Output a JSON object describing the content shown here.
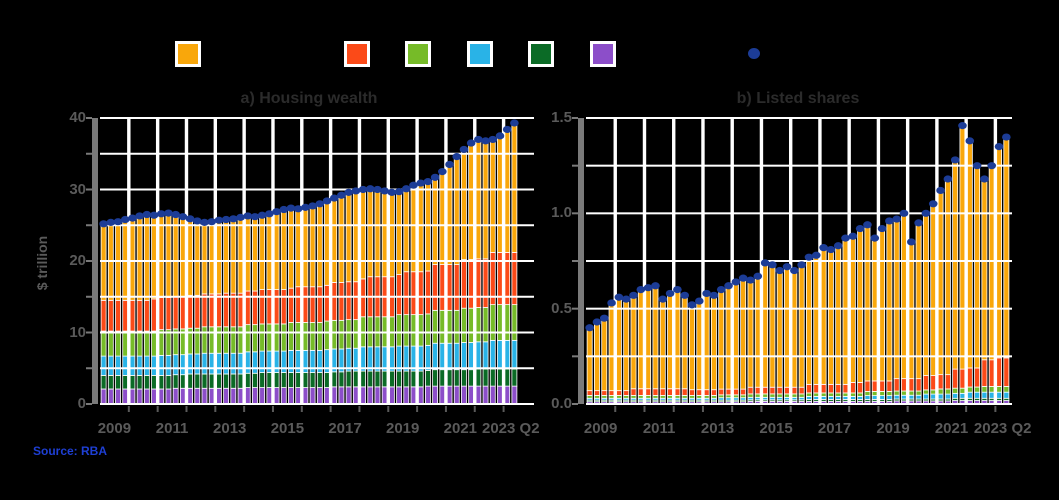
{
  "page": {
    "background": "#000000"
  },
  "source_note": "Source: RBA",
  "palette": {
    "orange": "#F9A70B",
    "red": "#FB4A18",
    "green": "#76BB28",
    "cyan": "#29B3E7",
    "dark_green": "#0B6B26",
    "purple": "#8C4EC9",
    "total_dot": "#1C3C96",
    "gridline": "#FFFFFF",
    "axis_gray": "#7a7a7a",
    "tick_text": "#5a5a5a",
    "title_text": "#2b2b2b",
    "source_blue": "#1E3FD4"
  },
  "legend": {
    "swatches": [
      {
        "name": "series-orange",
        "color": "#F9A70B"
      },
      {
        "name": "series-red",
        "color": "#FB4A18"
      },
      {
        "name": "series-green",
        "color": "#76BB28"
      },
      {
        "name": "series-cyan",
        "color": "#29B3E7"
      },
      {
        "name": "series-dark-green",
        "color": "#0B6B26"
      },
      {
        "name": "series-purple",
        "color": "#8C4EC9"
      }
    ],
    "marker": {
      "name": "total-marker",
      "color": "#1C3C96"
    }
  },
  "chart_data": [
    {
      "id": "a",
      "type": "bar",
      "stacked": true,
      "title": "a) Housing wealth",
      "ylabel": "$ trillion",
      "ylim": [
        0,
        40
      ],
      "grid_step": 5,
      "x_start": "2009 Q1",
      "x_end": "2023 Q2",
      "yticks": [
        {
          "label": "40",
          "value": 40
        },
        {
          "label": "30",
          "value": 30
        },
        {
          "label": "20",
          "value": 20
        },
        {
          "label": "10",
          "value": 10
        },
        {
          "label": "0",
          "value": 0
        }
      ],
      "xticks": [
        {
          "label": "2009",
          "pos": 2
        },
        {
          "label": "2011",
          "pos": 10
        },
        {
          "label": "2013",
          "pos": 18
        },
        {
          "label": "2015",
          "pos": 26
        },
        {
          "label": "2017",
          "pos": 34
        },
        {
          "label": "2019",
          "pos": 42
        },
        {
          "label": "2021",
          "pos": 50
        },
        {
          "label": "2023 Q2",
          "pos": 57
        }
      ],
      "year_gridline_indices": [
        4,
        8,
        12,
        16,
        20,
        24,
        28,
        32,
        36,
        40,
        44,
        48,
        52,
        56
      ],
      "series": [
        {
          "name": "series-purple",
          "color": "#8C4EC9",
          "values": [
            2.1,
            2.1,
            2.1,
            2.1,
            2.1,
            2.1,
            2.1,
            2.1,
            2.1,
            2.1,
            2.2,
            2.2,
            2.2,
            2.2,
            2.2,
            2.2,
            2.2,
            2.2,
            2.2,
            2.2,
            2.3,
            2.3,
            2.3,
            2.3,
            2.3,
            2.3,
            2.3,
            2.3,
            2.3,
            2.3,
            2.3,
            2.3,
            2.4,
            2.4,
            2.4,
            2.4,
            2.4,
            2.4,
            2.4,
            2.4,
            2.4,
            2.4,
            2.4,
            2.4,
            2.4,
            2.5,
            2.5,
            2.5,
            2.5,
            2.5,
            2.5,
            2.5,
            2.5,
            2.5,
            2.5,
            2.5,
            2.5,
            2.5
          ]
        },
        {
          "name": "series-dark-green",
          "color": "#0B6B26",
          "values": [
            1.9,
            1.9,
            1.9,
            1.9,
            1.9,
            1.9,
            1.9,
            1.9,
            1.9,
            1.9,
            1.9,
            1.9,
            2.0,
            2.0,
            2.0,
            2.0,
            2.0,
            2.0,
            2.0,
            2.0,
            2.0,
            2.0,
            2.1,
            2.1,
            2.1,
            2.1,
            2.1,
            2.1,
            2.1,
            2.1,
            2.1,
            2.1,
            2.1,
            2.1,
            2.2,
            2.2,
            2.2,
            2.2,
            2.2,
            2.2,
            2.2,
            2.2,
            2.2,
            2.2,
            2.2,
            2.2,
            2.3,
            2.3,
            2.3,
            2.3,
            2.3,
            2.3,
            2.4,
            2.4,
            2.4,
            2.4,
            2.4,
            2.4
          ]
        },
        {
          "name": "series-cyan",
          "color": "#29B3E7",
          "values": [
            2.7,
            2.7,
            2.7,
            2.7,
            2.7,
            2.7,
            2.7,
            2.7,
            2.8,
            2.8,
            2.8,
            2.8,
            2.8,
            2.8,
            2.9,
            2.9,
            2.9,
            2.9,
            2.9,
            2.9,
            3.0,
            3.0,
            3.0,
            3.0,
            3.0,
            3.0,
            3.1,
            3.1,
            3.1,
            3.1,
            3.1,
            3.2,
            3.2,
            3.2,
            3.2,
            3.2,
            3.4,
            3.4,
            3.4,
            3.4,
            3.4,
            3.5,
            3.5,
            3.5,
            3.5,
            3.5,
            3.7,
            3.7,
            3.7,
            3.7,
            3.8,
            3.8,
            3.8,
            3.8,
            4.0,
            4.0,
            4.0,
            4.0
          ]
        },
        {
          "name": "series-green",
          "color": "#76BB28",
          "values": [
            3.5,
            3.5,
            3.5,
            3.5,
            3.5,
            3.5,
            3.5,
            3.5,
            3.6,
            3.6,
            3.6,
            3.6,
            3.6,
            3.6,
            3.7,
            3.7,
            3.7,
            3.7,
            3.7,
            3.7,
            3.8,
            3.8,
            3.8,
            3.8,
            3.8,
            3.8,
            3.9,
            3.9,
            3.9,
            3.9,
            3.9,
            4.0,
            4.0,
            4.0,
            4.0,
            4.0,
            4.2,
            4.2,
            4.2,
            4.2,
            4.2,
            4.4,
            4.4,
            4.4,
            4.4,
            4.4,
            4.6,
            4.6,
            4.6,
            4.6,
            4.8,
            4.8,
            4.8,
            4.8,
            5.0,
            5.0,
            5.0,
            5.0
          ]
        },
        {
          "name": "series-red",
          "color": "#FB4A18",
          "values": [
            4.3,
            4.3,
            4.3,
            4.3,
            4.3,
            4.3,
            4.3,
            4.5,
            4.5,
            4.5,
            4.5,
            4.5,
            4.6,
            4.6,
            4.6,
            4.6,
            4.6,
            4.7,
            4.7,
            4.7,
            4.7,
            4.7,
            4.8,
            4.8,
            4.8,
            4.8,
            4.8,
            5.0,
            5.0,
            5.0,
            5.0,
            5.0,
            5.3,
            5.3,
            5.3,
            5.3,
            5.3,
            5.6,
            5.6,
            5.6,
            5.6,
            5.6,
            6.0,
            6.0,
            6.0,
            6.0,
            6.4,
            6.4,
            6.4,
            6.4,
            6.8,
            6.8,
            6.8,
            6.8,
            7.3,
            7.3,
            7.3,
            7.3
          ]
        },
        {
          "name": "series-orange",
          "color": "#F9A70B",
          "remainder_to_total": true,
          "values": []
        }
      ],
      "total_markers": {
        "name": "total",
        "color": "#1C3C96",
        "values": [
          25.2,
          25.4,
          25.5,
          25.8,
          26.0,
          26.3,
          26.5,
          26.4,
          26.6,
          26.7,
          26.5,
          26.2,
          25.9,
          25.6,
          25.4,
          25.5,
          25.7,
          25.8,
          25.9,
          26.1,
          26.3,
          26.2,
          26.4,
          26.6,
          26.9,
          27.2,
          27.4,
          27.3,
          27.5,
          27.7,
          28.0,
          28.4,
          28.8,
          29.2,
          29.6,
          29.8,
          30.0,
          30.1,
          30.0,
          29.8,
          29.6,
          29.7,
          30.1,
          30.6,
          30.9,
          31.1,
          31.7,
          32.5,
          33.5,
          34.6,
          35.6,
          36.5,
          37.0,
          36.8,
          37.0,
          37.5,
          38.4,
          39.3
        ]
      }
    },
    {
      "id": "b",
      "type": "bar",
      "stacked": true,
      "title": "b) Listed shares",
      "ylabel": "",
      "ylim": [
        0,
        1.5
      ],
      "grid_step": 0.25,
      "x_start": "2009 Q1",
      "x_end": "2023 Q2",
      "yticks": [
        {
          "label": "1.5",
          "value": 1.5
        },
        {
          "label": "1.0",
          "value": 1.0
        },
        {
          "label": "0.5",
          "value": 0.5
        },
        {
          "label": "0.0",
          "value": 0.0
        }
      ],
      "xticks": [
        {
          "label": "2009",
          "pos": 2
        },
        {
          "label": "2011",
          "pos": 10
        },
        {
          "label": "2013",
          "pos": 18
        },
        {
          "label": "2015",
          "pos": 26
        },
        {
          "label": "2017",
          "pos": 34
        },
        {
          "label": "2019",
          "pos": 42
        },
        {
          "label": "2021",
          "pos": 50
        },
        {
          "label": "2023 Q2",
          "pos": 57
        }
      ],
      "year_gridline_indices": [
        4,
        8,
        12,
        16,
        20,
        24,
        28,
        32,
        36,
        40,
        44,
        48,
        52,
        56
      ],
      "series": [
        {
          "name": "series-purple",
          "color": "#8C4EC9",
          "values": [
            0.012,
            0.012,
            0.012,
            0.012,
            0.012,
            0.012,
            0.012,
            0.012,
            0.012,
            0.012,
            0.012,
            0.012,
            0.012,
            0.012,
            0.012,
            0.012,
            0.012,
            0.012,
            0.012,
            0.012,
            0.012,
            0.012,
            0.014,
            0.014,
            0.014,
            0.014,
            0.014,
            0.014,
            0.014,
            0.014,
            0.014,
            0.014,
            0.014,
            0.014,
            0.014,
            0.014,
            0.014,
            0.014,
            0.014,
            0.014,
            0.014,
            0.014,
            0.016,
            0.016,
            0.016,
            0.016,
            0.016,
            0.016,
            0.016,
            0.016,
            0.018,
            0.018,
            0.018,
            0.018,
            0.018,
            0.018,
            0.018,
            0.018
          ]
        },
        {
          "name": "series-dark-green",
          "color": "#0B6B26",
          "values": [
            0.008,
            0.008,
            0.008,
            0.008,
            0.008,
            0.008,
            0.008,
            0.008,
            0.008,
            0.008,
            0.008,
            0.008,
            0.008,
            0.008,
            0.008,
            0.008,
            0.008,
            0.008,
            0.008,
            0.008,
            0.008,
            0.008,
            0.008,
            0.008,
            0.008,
            0.008,
            0.008,
            0.008,
            0.008,
            0.008,
            0.01,
            0.01,
            0.01,
            0.01,
            0.01,
            0.01,
            0.01,
            0.01,
            0.01,
            0.01,
            0.01,
            0.01,
            0.01,
            0.01,
            0.01,
            0.01,
            0.01,
            0.01,
            0.01,
            0.01,
            0.012,
            0.012,
            0.012,
            0.012,
            0.012,
            0.012,
            0.012,
            0.012
          ]
        },
        {
          "name": "series-cyan",
          "color": "#29B3E7",
          "values": [
            0.01,
            0.01,
            0.01,
            0.01,
            0.01,
            0.01,
            0.01,
            0.01,
            0.01,
            0.01,
            0.01,
            0.01,
            0.01,
            0.01,
            0.01,
            0.01,
            0.01,
            0.01,
            0.013,
            0.013,
            0.013,
            0.013,
            0.013,
            0.013,
            0.013,
            0.013,
            0.013,
            0.013,
            0.013,
            0.013,
            0.016,
            0.016,
            0.016,
            0.016,
            0.016,
            0.016,
            0.016,
            0.016,
            0.02,
            0.02,
            0.02,
            0.02,
            0.02,
            0.02,
            0.02,
            0.02,
            0.026,
            0.026,
            0.026,
            0.026,
            0.026,
            0.026,
            0.032,
            0.032,
            0.032,
            0.032,
            0.032,
            0.032
          ]
        },
        {
          "name": "series-green",
          "color": "#76BB28",
          "values": [
            0.015,
            0.015,
            0.015,
            0.015,
            0.015,
            0.015,
            0.015,
            0.015,
            0.015,
            0.015,
            0.015,
            0.015,
            0.015,
            0.015,
            0.015,
            0.015,
            0.015,
            0.015,
            0.015,
            0.015,
            0.015,
            0.015,
            0.018,
            0.018,
            0.018,
            0.018,
            0.018,
            0.018,
            0.018,
            0.018,
            0.018,
            0.018,
            0.018,
            0.018,
            0.018,
            0.018,
            0.018,
            0.018,
            0.022,
            0.022,
            0.022,
            0.022,
            0.022,
            0.022,
            0.022,
            0.022,
            0.022,
            0.022,
            0.027,
            0.027,
            0.027,
            0.027,
            0.027,
            0.027,
            0.03,
            0.03,
            0.03,
            0.03
          ]
        },
        {
          "name": "series-red",
          "color": "#FB4A18",
          "values": [
            0.025,
            0.025,
            0.025,
            0.025,
            0.025,
            0.025,
            0.035,
            0.035,
            0.035,
            0.035,
            0.035,
            0.035,
            0.035,
            0.035,
            0.03,
            0.03,
            0.03,
            0.03,
            0.03,
            0.03,
            0.03,
            0.03,
            0.035,
            0.035,
            0.035,
            0.035,
            0.035,
            0.035,
            0.035,
            0.035,
            0.045,
            0.045,
            0.045,
            0.045,
            0.045,
            0.045,
            0.055,
            0.055,
            0.055,
            0.055,
            0.055,
            0.055,
            0.065,
            0.065,
            0.065,
            0.065,
            0.075,
            0.075,
            0.075,
            0.075,
            0.1,
            0.1,
            0.1,
            0.1,
            0.14,
            0.14,
            0.15,
            0.15
          ]
        },
        {
          "name": "series-orange",
          "color": "#F9A70B",
          "remainder_to_total": true,
          "values": []
        }
      ],
      "total_markers": {
        "name": "total",
        "color": "#1C3C96",
        "values": [
          0.4,
          0.43,
          0.45,
          0.53,
          0.56,
          0.55,
          0.57,
          0.6,
          0.61,
          0.62,
          0.55,
          0.58,
          0.6,
          0.57,
          0.52,
          0.54,
          0.58,
          0.57,
          0.6,
          0.62,
          0.64,
          0.66,
          0.65,
          0.67,
          0.74,
          0.73,
          0.7,
          0.72,
          0.7,
          0.73,
          0.77,
          0.78,
          0.82,
          0.81,
          0.83,
          0.87,
          0.88,
          0.92,
          0.94,
          0.87,
          0.92,
          0.96,
          0.97,
          1.0,
          0.85,
          0.95,
          1.0,
          1.05,
          1.12,
          1.18,
          1.28,
          1.46,
          1.38,
          1.25,
          1.18,
          1.25,
          1.35,
          1.4
        ]
      }
    }
  ]
}
